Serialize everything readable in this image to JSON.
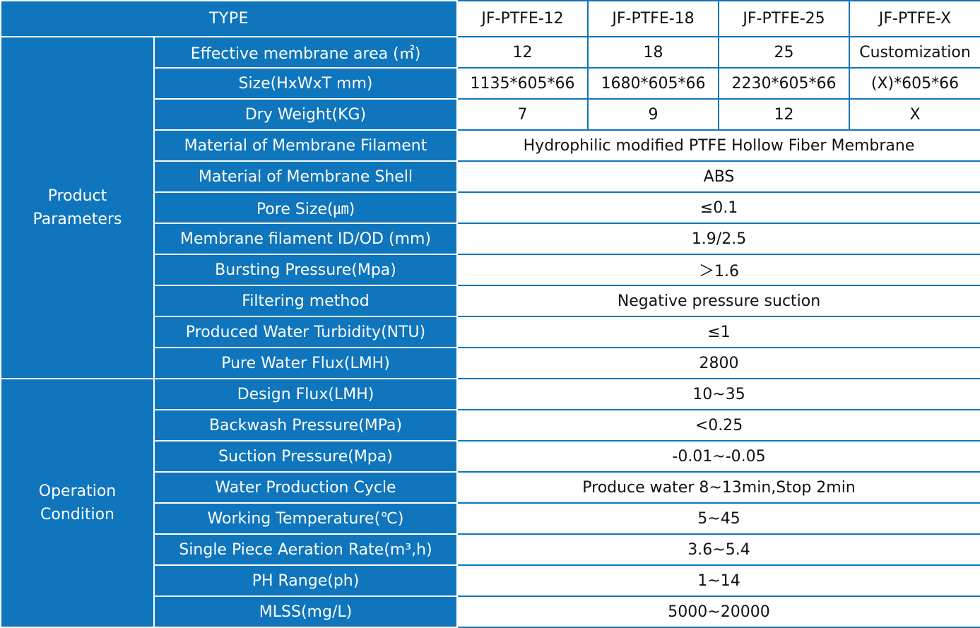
{
  "header": {
    "type_label": "TYPE",
    "models": [
      "JF-PTFE-12",
      "JF-PTFE-18",
      "JF-PTFE-25",
      "JF-PTFE-X"
    ]
  },
  "groups": {
    "product": {
      "line1": "Product",
      "line2": "Parameters"
    },
    "operation": {
      "line1": "Operation",
      "line2": "Condition"
    }
  },
  "product_rows": [
    {
      "label": "Effective membrane area (㎡)",
      "values": [
        "12",
        "18",
        "25",
        "Customization"
      ]
    },
    {
      "label": "Size(HxWxT mm)",
      "values": [
        "1135*605*66",
        "1680*605*66",
        "2230*605*66",
        "(X)*605*66"
      ]
    },
    {
      "label": "Dry Weight(KG)",
      "values": [
        "7",
        "9",
        "12",
        "X"
      ]
    },
    {
      "label": "Material of Membrane Filament",
      "value": "Hydrophilic modified PTFE Hollow Fiber Membrane"
    },
    {
      "label": "Material of Membrane Shell",
      "value": "ABS"
    },
    {
      "label": "Pore Size(㎛)",
      "value": "≤0.1"
    },
    {
      "label": "Membrane filament ID/OD (mm)",
      "value": "1.9/2.5"
    },
    {
      "label": "Bursting Pressure(Mpa)",
      "value": "＞1.6"
    },
    {
      "label": "Filtering method",
      "value": "Negative pressure suction"
    },
    {
      "label": "Produced Water Turbidity(NTU)",
      "value": "≤1"
    },
    {
      "label": "Pure Water Flux(LMH)",
      "value": "2800"
    }
  ],
  "operation_rows": [
    {
      "label": "Design Flux(LMH)",
      "value": "10~35"
    },
    {
      "label": "Backwash Pressure(MPa)",
      "value": "<0.25"
    },
    {
      "label": "Suction Pressure(Mpa)",
      "value": "-0.01~-0.05"
    },
    {
      "label": "Water Production Cycle",
      "value": "Produce water 8~13min,Stop 2min"
    },
    {
      "label": "Working Temperature(℃)",
      "value": "5~45"
    },
    {
      "label": "Single Piece Aeration Rate(m³,h)",
      "value": "3.6~5.4"
    },
    {
      "label": "PH Range(ph)",
      "value": "1~14"
    },
    {
      "label": "MLSS(mg/L)",
      "value": "5000~20000"
    }
  ],
  "colors": {
    "header_blue": "#0f75bc",
    "cell_white": "#ffffff",
    "text_dark": "#111111"
  }
}
